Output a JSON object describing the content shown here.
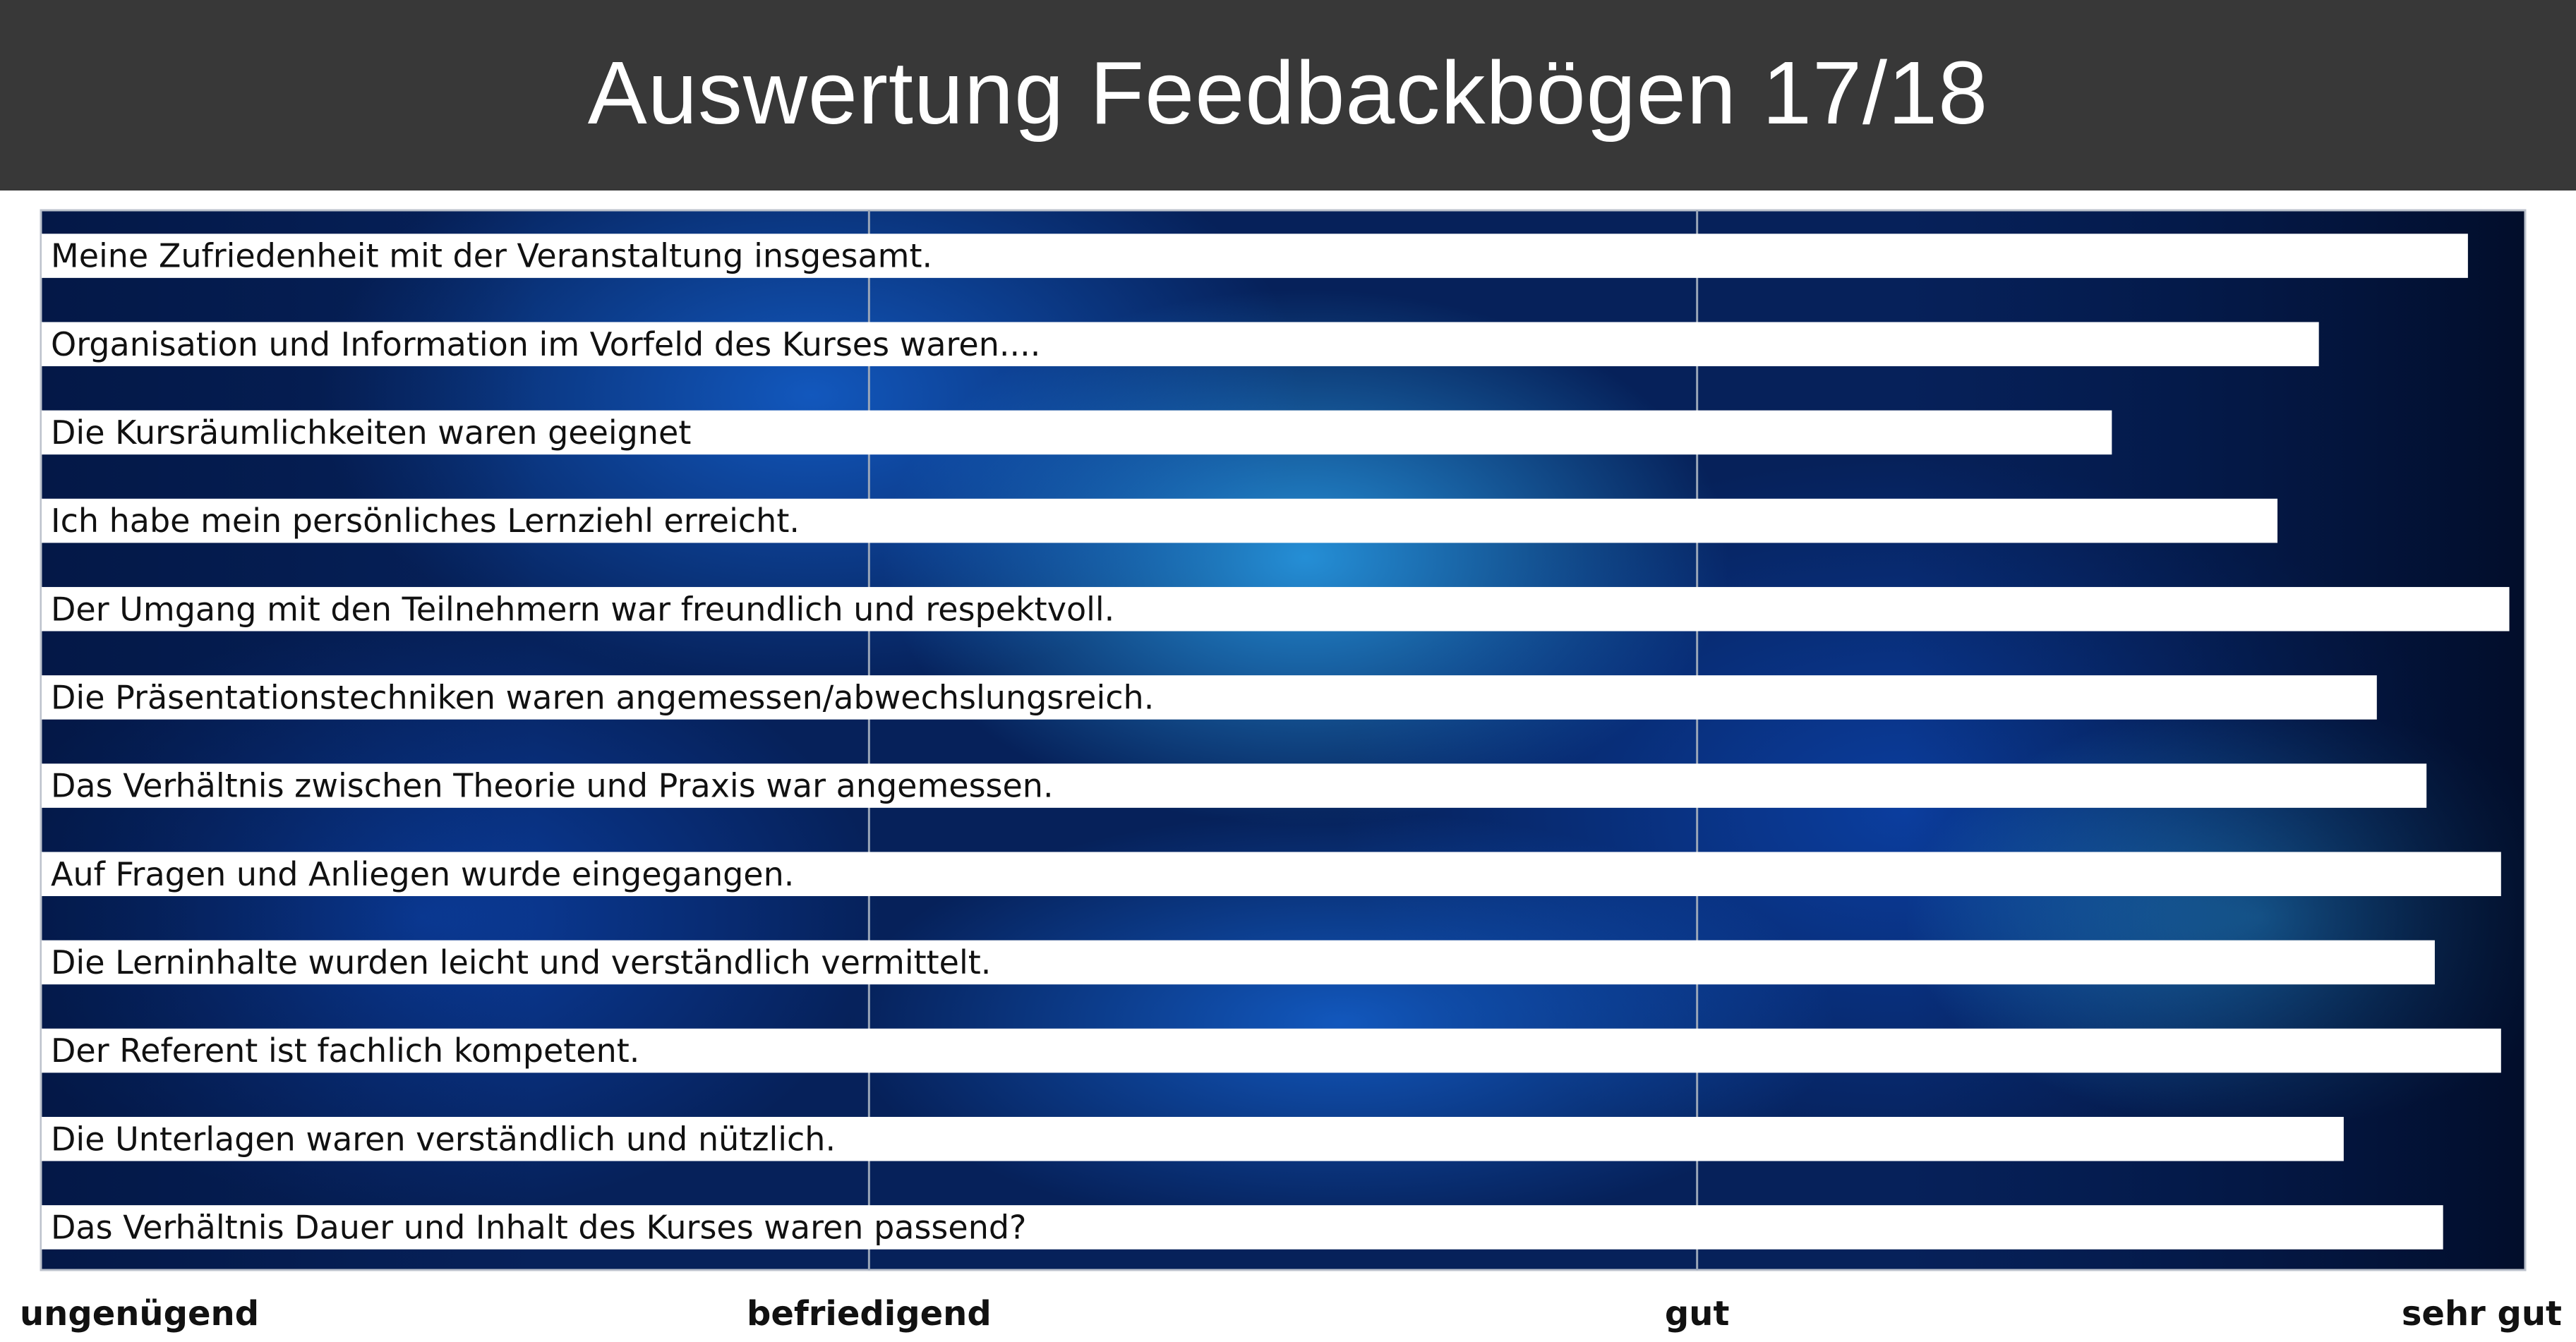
{
  "header": {
    "title": "Auswertung Feedbackbögen 17/18"
  },
  "chart_data": {
    "type": "bar",
    "orientation": "horizontal",
    "title": "Auswertung Feedbackbögen 17/18",
    "categories": [
      "Meine Zufriedenheit mit der Veranstaltung insgesamt.",
      "Organisation und Information im Vorfeld des Kurses waren....",
      "Die Kursräumlichkeiten waren geeignet",
      "Ich habe mein persönliches Lernziehl erreicht.",
      "Der Umgang mit den Teilnehmern war freundlich und respektvoll.",
      "Die Präsentationstechniken waren angemessen/abwechslungsreich.",
      "Das Verhältnis zwischen Theorie und Praxis war angemessen.",
      "Auf Fragen und Anliegen wurde eingegangen.",
      "Die Lerninhalte wurden leicht und verständlich vermittelt.",
      "Der Referent ist fachlich kompetent.",
      "Die Unterlagen waren verständlich und nützlich.",
      "Das Verhältnis Dauer und Inhalt des Kurses waren passend?"
    ],
    "values": [
      2.93,
      2.75,
      2.5,
      2.7,
      2.98,
      2.82,
      2.88,
      2.97,
      2.89,
      2.97,
      2.78,
      2.9
    ],
    "x_ticks": [
      {
        "value": 0,
        "label": "ungenügend"
      },
      {
        "value": 1,
        "label": "befriedigend"
      },
      {
        "value": 2,
        "label": "gut"
      },
      {
        "value": 3,
        "label": "sehr gut"
      }
    ],
    "xlim": [
      0,
      3
    ],
    "grid": true,
    "legend": "none",
    "colors": {
      "bar": "#ffffff",
      "background": "#06215a",
      "grid": "#9aa6b8",
      "header": "#383838"
    }
  }
}
